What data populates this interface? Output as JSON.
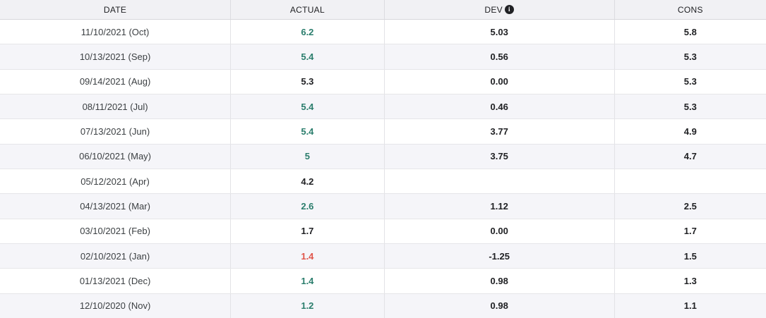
{
  "table": {
    "columns": [
      {
        "key": "date",
        "label": "DATE"
      },
      {
        "key": "actual",
        "label": "ACTUAL"
      },
      {
        "key": "dev",
        "label": "DEV",
        "info_icon": "info-icon"
      },
      {
        "key": "cons",
        "label": "CONS"
      }
    ],
    "info_icon_glyph": "i",
    "colors": {
      "positive": "#2a7d6c",
      "negative": "#e0554a",
      "neutral": "#202124",
      "header_bg": "#f1f1f4",
      "stripe_bg": "#f5f5f9"
    },
    "rows": [
      {
        "date": "11/10/2021 (Oct)",
        "actual": "6.2",
        "actual_tone": "positive",
        "dev": "5.03",
        "cons": "5.8"
      },
      {
        "date": "10/13/2021 (Sep)",
        "actual": "5.4",
        "actual_tone": "positive",
        "dev": "0.56",
        "cons": "5.3"
      },
      {
        "date": "09/14/2021 (Aug)",
        "actual": "5.3",
        "actual_tone": "neutral",
        "dev": "0.00",
        "cons": "5.3"
      },
      {
        "date": "08/11/2021 (Jul)",
        "actual": "5.4",
        "actual_tone": "positive",
        "dev": "0.46",
        "cons": "5.3"
      },
      {
        "date": "07/13/2021 (Jun)",
        "actual": "5.4",
        "actual_tone": "positive",
        "dev": "3.77",
        "cons": "4.9"
      },
      {
        "date": "06/10/2021 (May)",
        "actual": "5",
        "actual_tone": "positive",
        "dev": "3.75",
        "cons": "4.7"
      },
      {
        "date": "05/12/2021 (Apr)",
        "actual": "4.2",
        "actual_tone": "neutral",
        "dev": "",
        "cons": ""
      },
      {
        "date": "04/13/2021 (Mar)",
        "actual": "2.6",
        "actual_tone": "positive",
        "dev": "1.12",
        "cons": "2.5"
      },
      {
        "date": "03/10/2021 (Feb)",
        "actual": "1.7",
        "actual_tone": "neutral",
        "dev": "0.00",
        "cons": "1.7"
      },
      {
        "date": "02/10/2021 (Jan)",
        "actual": "1.4",
        "actual_tone": "negative",
        "dev": "-1.25",
        "cons": "1.5"
      },
      {
        "date": "01/13/2021 (Dec)",
        "actual": "1.4",
        "actual_tone": "positive",
        "dev": "0.98",
        "cons": "1.3"
      },
      {
        "date": "12/10/2020 (Nov)",
        "actual": "1.2",
        "actual_tone": "positive",
        "dev": "0.98",
        "cons": "1.1"
      }
    ]
  }
}
